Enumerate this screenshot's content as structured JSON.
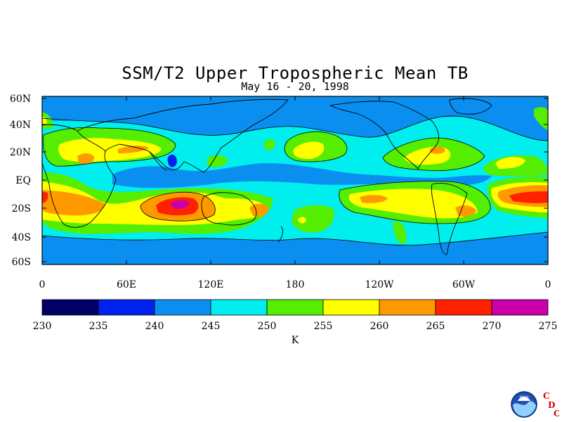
{
  "title": "SSM/T2 Upper Tropospheric Mean TB",
  "subtitle": "May 16 - 20, 1998",
  "map": {
    "lat_labels": [
      "60N",
      "40N",
      "20N",
      "EQ",
      "20S",
      "40S",
      "60S"
    ],
    "lon_labels": [
      "0",
      "60E",
      "120E",
      "180",
      "120W",
      "60W",
      "0"
    ]
  },
  "colorbar": {
    "levels": [
      "230",
      "235",
      "240",
      "245",
      "250",
      "255",
      "260",
      "265",
      "270",
      "275"
    ],
    "unit": "K",
    "colors": [
      "#000066",
      "#0022ee",
      "#0a8ff0",
      "#00eeee",
      "#55ee00",
      "#ffff00",
      "#ff9900",
      "#ff2200",
      "#cc00aa"
    ]
  },
  "logo": {
    "icon": "noaa-logo-icon",
    "letters": [
      "C",
      "D",
      "C"
    ],
    "emblem_text": "NOAA"
  }
}
